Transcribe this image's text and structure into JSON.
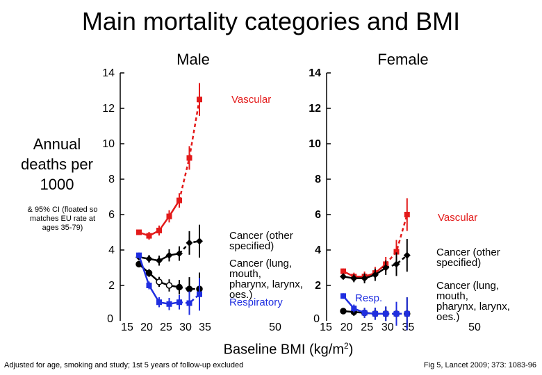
{
  "title": "Main mortality categories and BMI",
  "ylabel": "Annual deaths per 1000",
  "ylabel_note": "& 95% CI (floated so matches EU rate at ages 35-79)",
  "xlabel": {
    "text": "Baseline BMI (kg/m",
    "sup": "2",
    "close": ")"
  },
  "footer_left": "Adjusted for age, smoking and study; 1st 5 years of follow-up excluded",
  "footer_right": "Fig 5, Lancet 2009; 373: 1083-96",
  "colors": {
    "vascular": "#e31a1a",
    "cancer_other": "#000000",
    "cancer_lung": "#000000",
    "respiratory": "#1f2ee0"
  },
  "chart_data": [
    {
      "type": "line",
      "panel": "Male",
      "xlim": [
        15,
        50
      ],
      "ylim": [
        0,
        14
      ],
      "x_ticks": [
        15,
        20,
        25,
        30,
        35,
        50
      ],
      "y_ticks": [
        0,
        2,
        4,
        6,
        8,
        10,
        12,
        14
      ],
      "series": [
        {
          "name": "Vascular",
          "key": "vascular",
          "label": "Vascular",
          "x": [
            15,
            20,
            25,
            30,
            35,
            40,
            45,
            50
          ],
          "y": [
            5.0,
            4.8,
            5.1,
            5.9,
            6.8,
            9.2,
            12.5,
            null
          ]
        },
        {
          "name": "Cancer (other specified)",
          "key": "cancer_other",
          "label": "Cancer (other specified)",
          "x": [
            15,
            20,
            25,
            30,
            35,
            40,
            45,
            50
          ],
          "y": [
            3.6,
            3.5,
            3.4,
            3.7,
            3.8,
            4.4,
            4.5,
            null
          ]
        },
        {
          "name": "Cancer (lung, mouth, pharynx, larynx, oes.)",
          "key": "cancer_lung",
          "label": "Cancer (lung, mouth, pharynx, larynx, oes.)",
          "x": [
            15,
            20,
            25,
            30,
            35,
            40,
            45,
            50
          ],
          "y": [
            3.2,
            2.7,
            2.2,
            2.0,
            1.9,
            1.8,
            1.8,
            null
          ]
        },
        {
          "name": "Respiratory",
          "key": "respiratory",
          "label": "Respiratory",
          "x": [
            15,
            20,
            25,
            30,
            35,
            40,
            45,
            50
          ],
          "y": [
            3.7,
            2.0,
            1.05,
            0.95,
            1.05,
            1.0,
            1.5,
            null
          ]
        }
      ]
    },
    {
      "type": "line",
      "panel": "Female",
      "xlim": [
        15,
        50
      ],
      "ylim": [
        0,
        14
      ],
      "x_ticks": [
        15,
        20,
        25,
        30,
        35,
        50
      ],
      "y_ticks": [
        0,
        2,
        4,
        6,
        8,
        10,
        12,
        14
      ],
      "series": [
        {
          "name": "Vascular",
          "key": "vascular",
          "label": "Vascular",
          "x": [
            15,
            20,
            25,
            30,
            35,
            40,
            45,
            50
          ],
          "y": [
            2.8,
            2.5,
            2.5,
            2.7,
            3.2,
            3.9,
            6.0,
            null
          ]
        },
        {
          "name": "Cancer (other specified)",
          "key": "cancer_other",
          "label": "Cancer (other specified)",
          "x": [
            15,
            20,
            25,
            30,
            35,
            40,
            45,
            50
          ],
          "y": [
            2.5,
            2.4,
            2.4,
            2.6,
            3.0,
            3.2,
            3.7,
            null
          ]
        },
        {
          "name": "Cancer (lung, mouth, pharynx, larynx, oes.)",
          "key": "cancer_lung",
          "label": "Cancer (lung, mouth, pharynx, larynx, oes.)",
          "x": [
            15,
            20,
            25,
            30,
            35,
            40,
            45,
            50
          ],
          "y": [
            0.55,
            0.5,
            0.45,
            0.4,
            0.4,
            0.4,
            0.4,
            null
          ]
        },
        {
          "name": "Resp.",
          "key": "respiratory",
          "label": "Resp.",
          "x": [
            15,
            20,
            25,
            30,
            35,
            40,
            45,
            50
          ],
          "y": [
            1.4,
            0.7,
            0.45,
            0.4,
            0.4,
            0.4,
            0.4,
            null
          ]
        }
      ]
    }
  ]
}
